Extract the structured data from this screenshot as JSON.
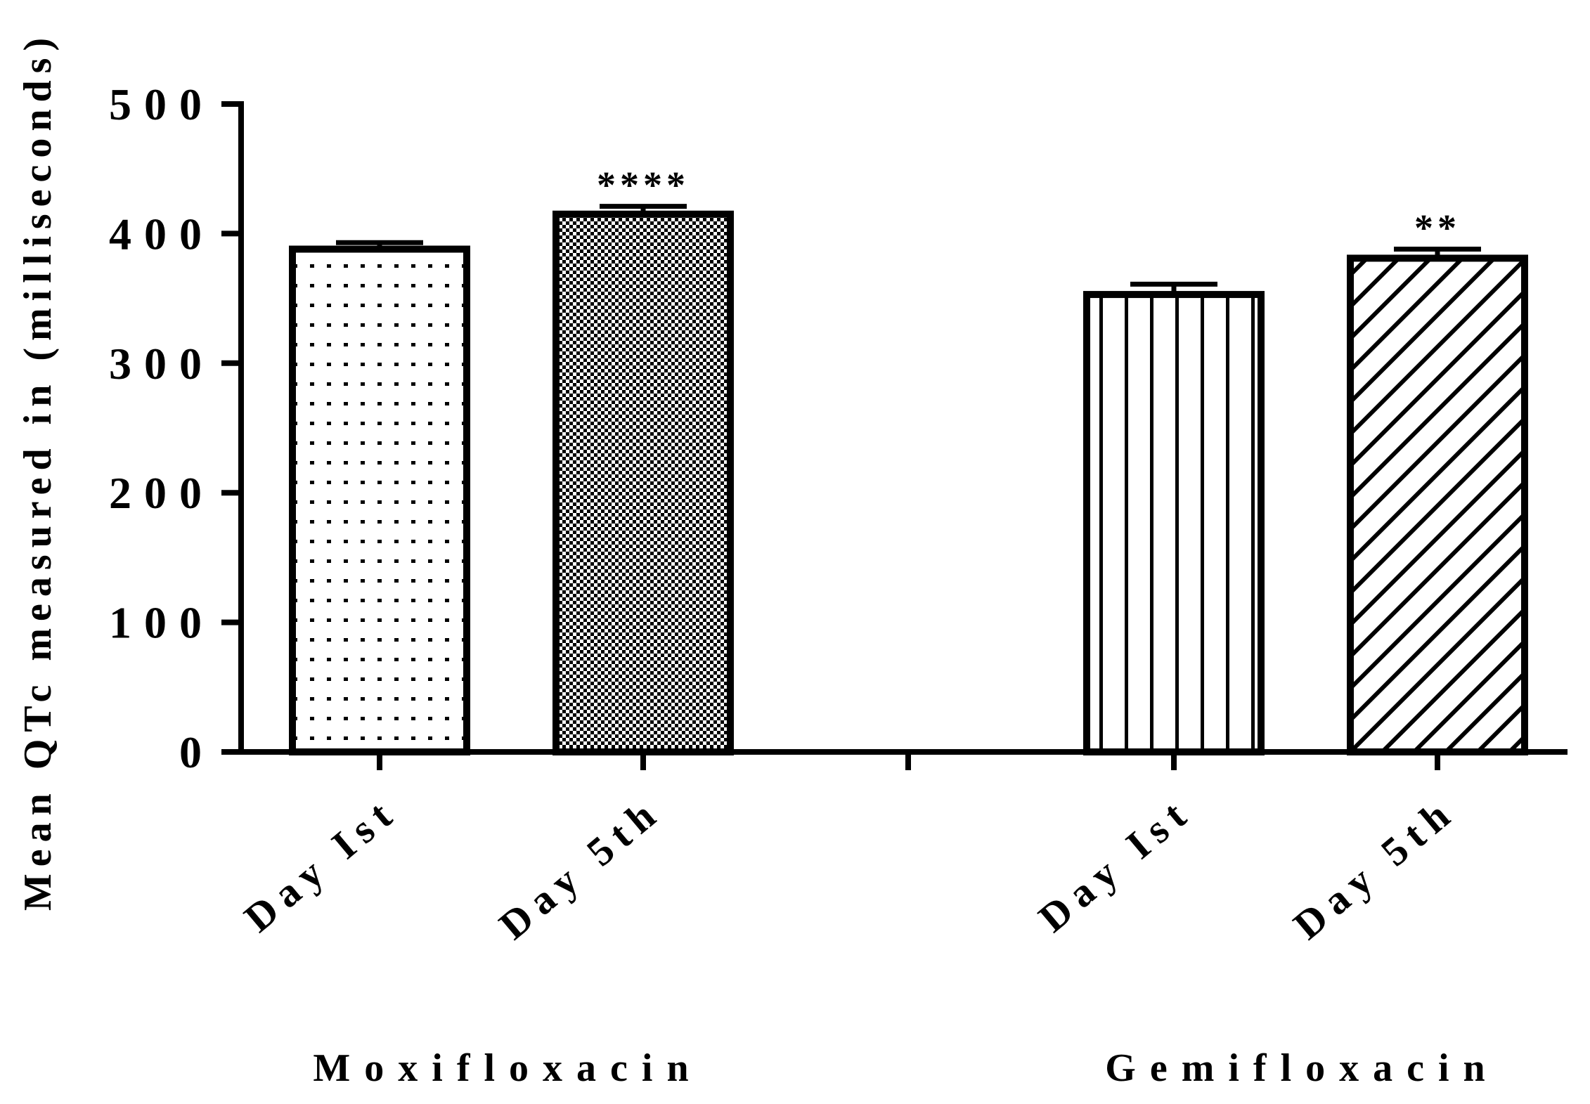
{
  "chart_data": {
    "type": "bar",
    "title": "",
    "xlabel": "",
    "ylabel": "Mean QTc measured in (milliseconds)",
    "ylim": [
      0,
      500
    ],
    "yticks": [
      0,
      100,
      200,
      300,
      400,
      500
    ],
    "grid": false,
    "groups": [
      {
        "label": "Moxifloxacin",
        "bars": [
          {
            "category": "Day Ist",
            "value": 388,
            "error": 5,
            "pattern": "dots",
            "significance": ""
          },
          {
            "category": "Day 5th",
            "value": 415,
            "error": 6,
            "pattern": "checker",
            "significance": "****"
          }
        ]
      },
      {
        "label": "Gemifloxacin",
        "bars": [
          {
            "category": "Day Ist",
            "value": 353,
            "error": 8,
            "pattern": "vertical-lines",
            "significance": ""
          },
          {
            "category": "Day 5th",
            "value": 381,
            "error": 7,
            "pattern": "diagonal-lines",
            "significance": "**"
          }
        ]
      }
    ]
  }
}
